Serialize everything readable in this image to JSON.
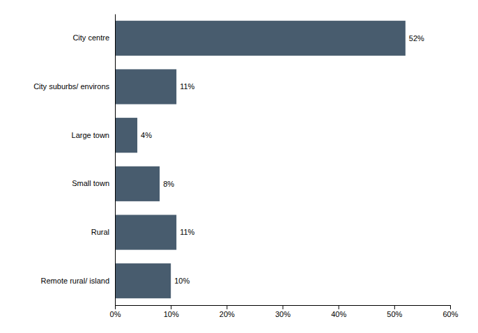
{
  "chart_data": {
    "type": "bar",
    "orientation": "horizontal",
    "categories": [
      "Remote rural/ island",
      "Rural",
      "Small town",
      "Large town",
      "City suburbs/ environs",
      "City centre"
    ],
    "values": [
      10,
      11,
      8,
      4,
      11,
      52
    ],
    "value_labels": [
      "10%",
      "11%",
      "8%",
      "4%",
      "11%",
      "52%"
    ],
    "data_labels": true,
    "color": "#485c6e",
    "xlim": [
      0,
      60
    ],
    "xticks": [
      {
        "value": 0,
        "label": "0%"
      },
      {
        "value": 10,
        "label": "10%"
      },
      {
        "value": 20,
        "label": "20%"
      },
      {
        "value": 30,
        "label": "30%"
      },
      {
        "value": 40,
        "label": "40%"
      },
      {
        "value": 50,
        "label": "50%"
      },
      {
        "value": 60,
        "label": "60%"
      }
    ],
    "grid": false
  }
}
